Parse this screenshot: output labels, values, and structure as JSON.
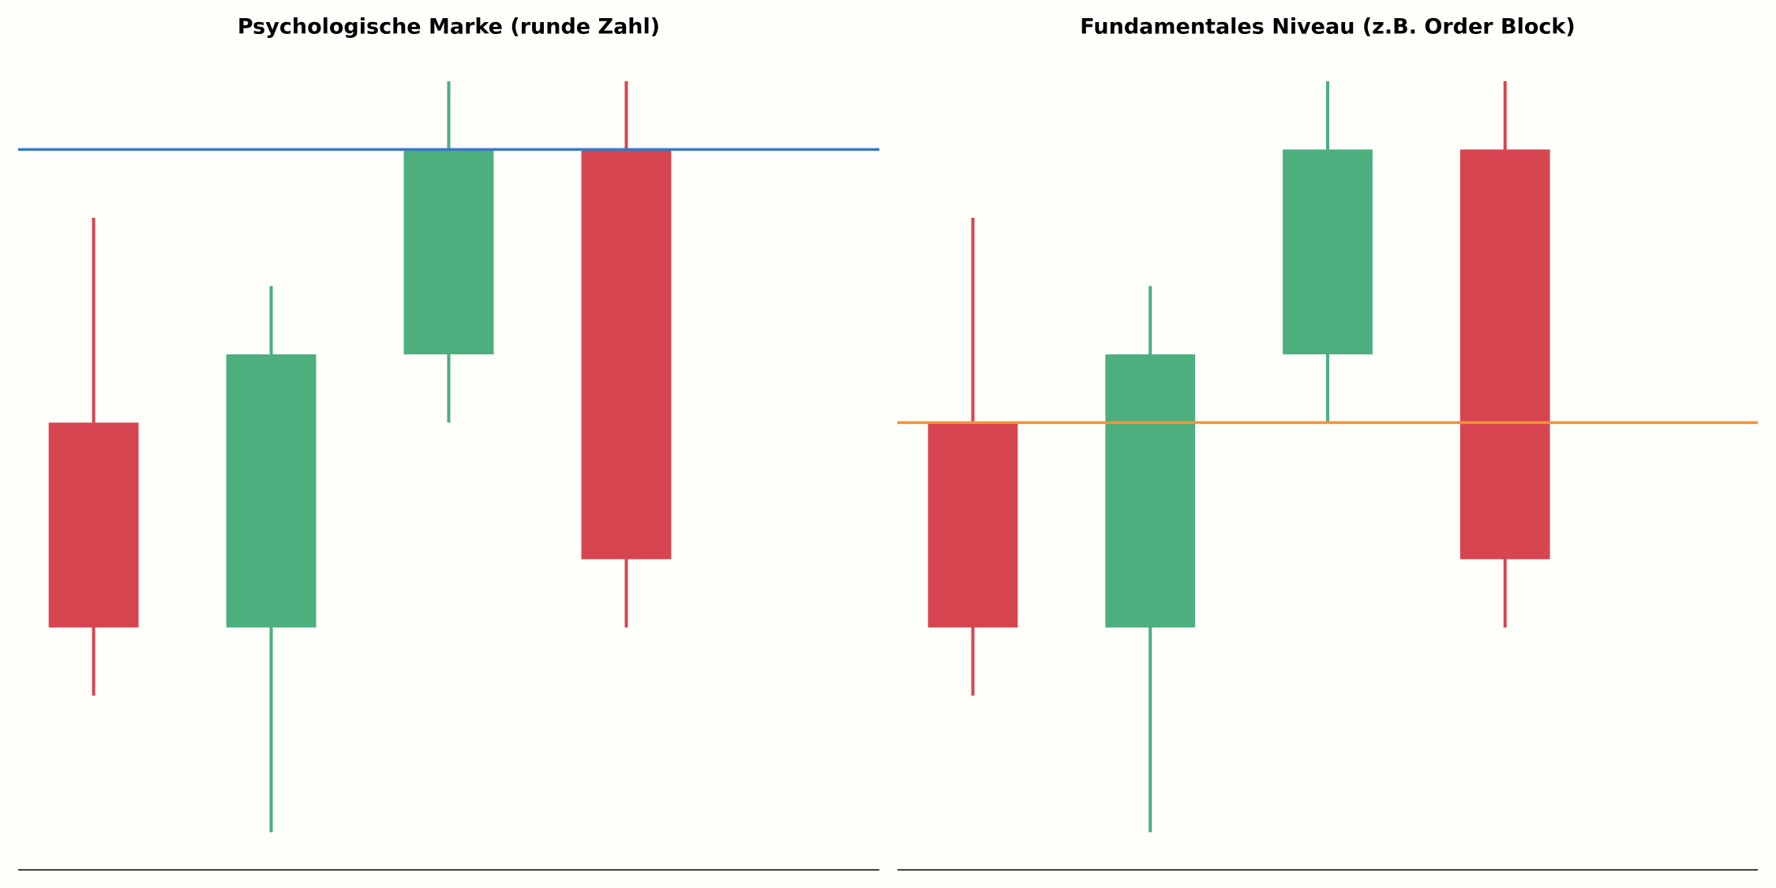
{
  "chart_data": [
    {
      "type": "candlestick",
      "title": "Psychologische Marke (runde Zahl)",
      "open": [
        96,
        93,
        97,
        100
      ],
      "high": [
        99,
        98,
        101,
        101
      ],
      "low": [
        92,
        90,
        96,
        93
      ],
      "close": [
        93,
        97,
        100,
        94
      ],
      "up_color": "#4caf7d",
      "down_color": "#d64550",
      "level": {
        "value": 100,
        "color": "#3a78c3"
      },
      "ylim": [
        89.45,
        101.6
      ]
    },
    {
      "type": "candlestick",
      "title": "Fundamentales Niveau (z.B. Order Block)",
      "open": [
        96,
        93,
        97,
        100
      ],
      "high": [
        99,
        98,
        101,
        101
      ],
      "low": [
        92,
        90,
        96,
        93
      ],
      "close": [
        93,
        97,
        100,
        94
      ],
      "up_color": "#4caf7d",
      "down_color": "#d64550",
      "level": {
        "value": 96,
        "color": "#f0943a"
      },
      "ylim": [
        89.45,
        101.6
      ]
    }
  ]
}
